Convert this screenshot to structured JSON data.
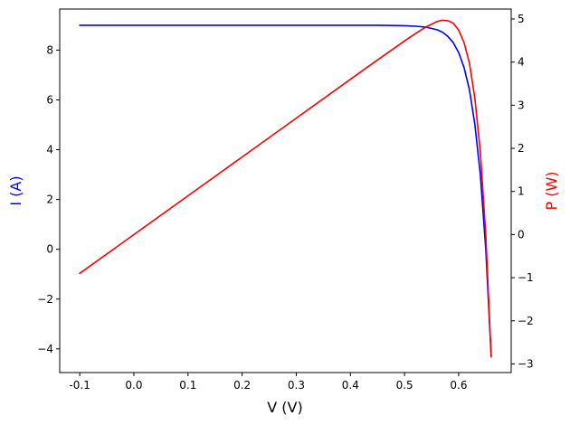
{
  "chart_data": {
    "type": "line",
    "xlabel": "V (V)",
    "ylabel_left": "I (A)",
    "ylabel_right": "P (W)",
    "xlim": [
      -0.137,
      0.697
    ],
    "ylim_left": [
      -4.95,
      9.65
    ],
    "ylim_right": [
      -3.2,
      5.23
    ],
    "x_ticks": [
      "-0.1",
      "0.0",
      "0.1",
      "0.2",
      "0.3",
      "0.4",
      "0.5",
      "0.6"
    ],
    "x_tick_values": [
      -0.1,
      0.0,
      0.1,
      0.2,
      0.3,
      0.4,
      0.5,
      0.6
    ],
    "y_left_ticks": [
      "−4",
      "−2",
      "0",
      "2",
      "4",
      "6",
      "8"
    ],
    "y_left_tick_values": [
      -4,
      -2,
      0,
      2,
      4,
      6,
      8
    ],
    "y_right_ticks": [
      "−3",
      "−2",
      "−1",
      "0",
      "1",
      "2",
      "3",
      "4",
      "5"
    ],
    "y_right_tick_values": [
      -3,
      -2,
      -1,
      0,
      1,
      2,
      3,
      4,
      5
    ],
    "left_label_color": "#0000ff",
    "right_label_color": "#ff0000",
    "series": [
      {
        "axis": "left",
        "color": "#0000ff",
        "x": [
          -0.1,
          0.0,
          0.1,
          0.2,
          0.3,
          0.4,
          0.45,
          0.5,
          0.52,
          0.54,
          0.56,
          0.57,
          0.58,
          0.59,
          0.6,
          0.61,
          0.62,
          0.63,
          0.64,
          0.65,
          0.66
        ],
        "y": [
          9.0,
          9.0,
          9.0,
          9.0,
          9.0,
          9.0,
          9.0,
          8.98,
          8.96,
          8.92,
          8.82,
          8.72,
          8.55,
          8.3,
          7.9,
          7.3,
          6.4,
          5.0,
          3.0,
          0.0,
          -4.3
        ]
      },
      {
        "axis": "right",
        "color": "#ff0000",
        "x": [
          -0.1,
          0.0,
          0.1,
          0.2,
          0.3,
          0.4,
          0.45,
          0.5,
          0.52,
          0.54,
          0.56,
          0.57,
          0.58,
          0.59,
          0.6,
          0.61,
          0.62,
          0.63,
          0.64,
          0.65,
          0.66
        ],
        "y": [
          -0.9,
          0.0,
          0.9,
          1.8,
          2.7,
          3.6,
          4.05,
          4.49,
          4.66,
          4.82,
          4.94,
          4.97,
          4.96,
          4.9,
          4.74,
          4.45,
          3.97,
          3.15,
          1.92,
          0.0,
          -2.84
        ]
      }
    ]
  }
}
